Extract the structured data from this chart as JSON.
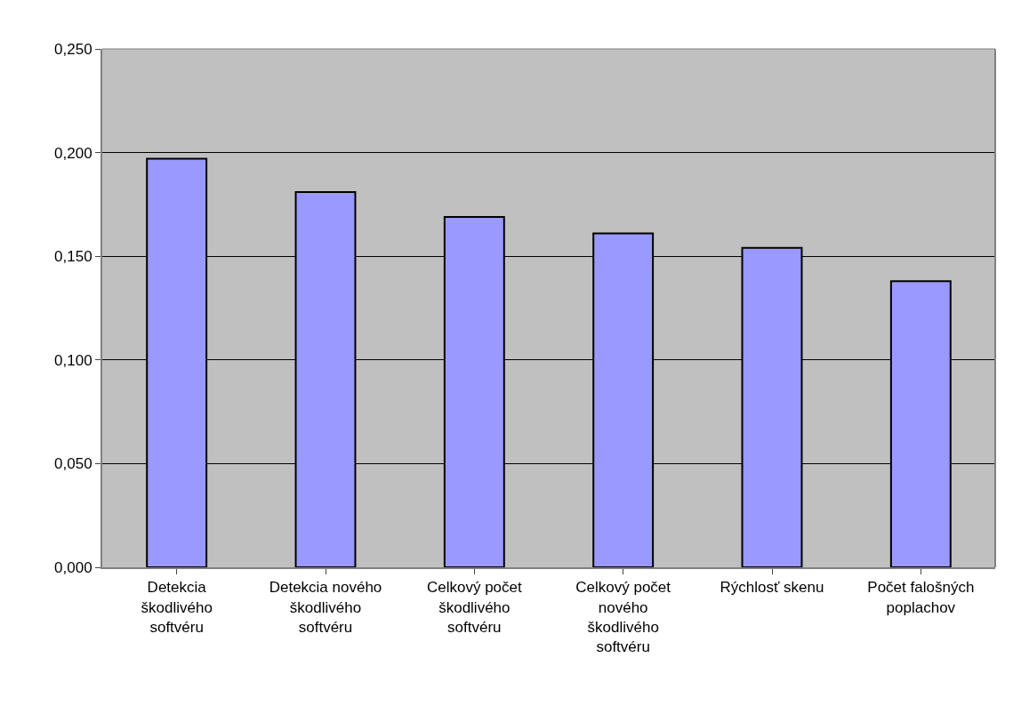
{
  "chart_data": {
    "type": "bar",
    "categories": [
      "Detekcia škodlivého softvéru",
      "Detekcia nového škodlivého softvéru",
      "Celkový počet škodlivého softvéru",
      "Celkový počet nového škodlivého softvéru",
      "Rýchlosť skenu",
      "Počet falošných poplachov"
    ],
    "values": [
      0.197,
      0.181,
      0.169,
      0.161,
      0.154,
      0.138
    ],
    "color": "#9999ff",
    "ylim": [
      0,
      0.25
    ],
    "yticks": [
      {
        "value": 0,
        "label": "0,000"
      },
      {
        "value": 0.05,
        "label": "0,050"
      },
      {
        "value": 0.1,
        "label": "0,100"
      },
      {
        "value": 0.15,
        "label": "0,150"
      },
      {
        "value": 0.2,
        "label": "0,200"
      },
      {
        "value": 0.25,
        "label": "0,250"
      }
    ],
    "grid": "y",
    "legend": false
  }
}
